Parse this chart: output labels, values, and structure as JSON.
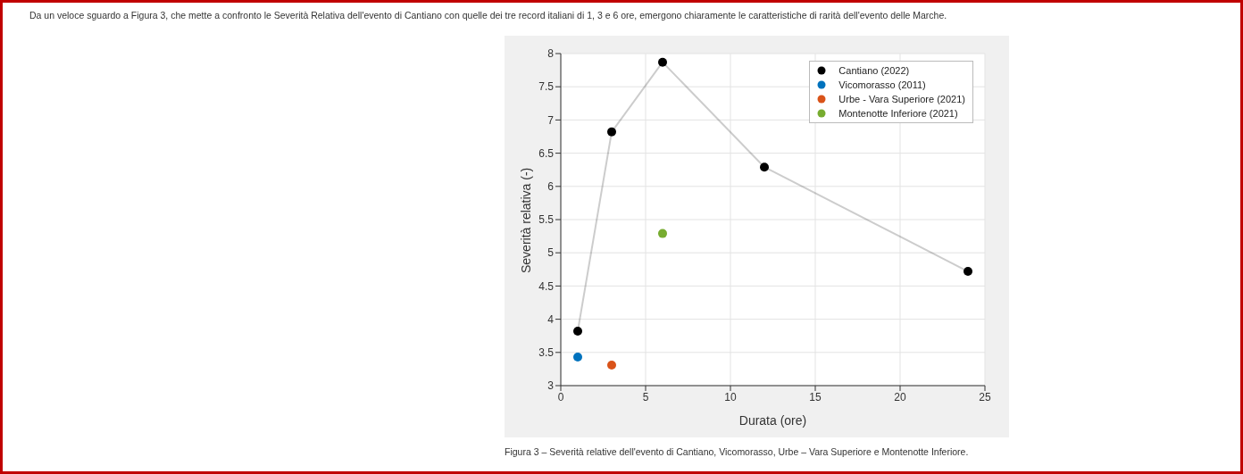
{
  "chart_data": {
    "type": "line",
    "annotations": [
      "Da un veloce sguardo a Figura 3, che mette a confronto le Severità Relativa dell'evento di Cantiano con quelle dei tre record italiani di 1, 3 e 6 ore, emergono chiaramente le caratteristiche di rarità dell'evento delle Marche.",
      "Figura 3 – Severità relative dell'evento di Cantiano, Vicomorasso, Urbe – Vara Superiore e Montenotte Inferiore."
    ],
    "xlabel": "Durata (ore)",
    "ylabel": "Severità relativa (-)",
    "series": [
      {
        "name": "Cantiano (2022)",
        "color": "#000000",
        "x": [
          1,
          3,
          6,
          12,
          24
        ],
        "values": [
          3.82,
          6.82,
          7.87,
          6.29,
          4.72
        ]
      },
      {
        "name": "Vicomorasso (2011)",
        "type": "scatter",
        "color": "#0072bd",
        "x": [
          1
        ],
        "values": [
          3.43
        ]
      },
      {
        "name": "Urbe - Vara Superiore (2021)",
        "type": "scatter",
        "color": "#d95319",
        "x": [
          3
        ],
        "values": [
          3.31
        ]
      },
      {
        "name": "Montenotte Inferiore (2021)",
        "type": "scatter",
        "color": "#77ac30",
        "x": [
          6
        ],
        "values": [
          5.29
        ]
      }
    ],
    "xlim": [
      0,
      25
    ],
    "xticks": [
      0,
      5,
      10,
      15,
      20,
      25
    ],
    "ylim": [
      3,
      8
    ],
    "yticks": [
      3,
      3.5,
      4,
      4.5,
      5,
      5.5,
      6,
      6.5,
      7,
      7.5,
      8
    ],
    "grid": true,
    "legend": "top right",
    "marker": "circle"
  }
}
